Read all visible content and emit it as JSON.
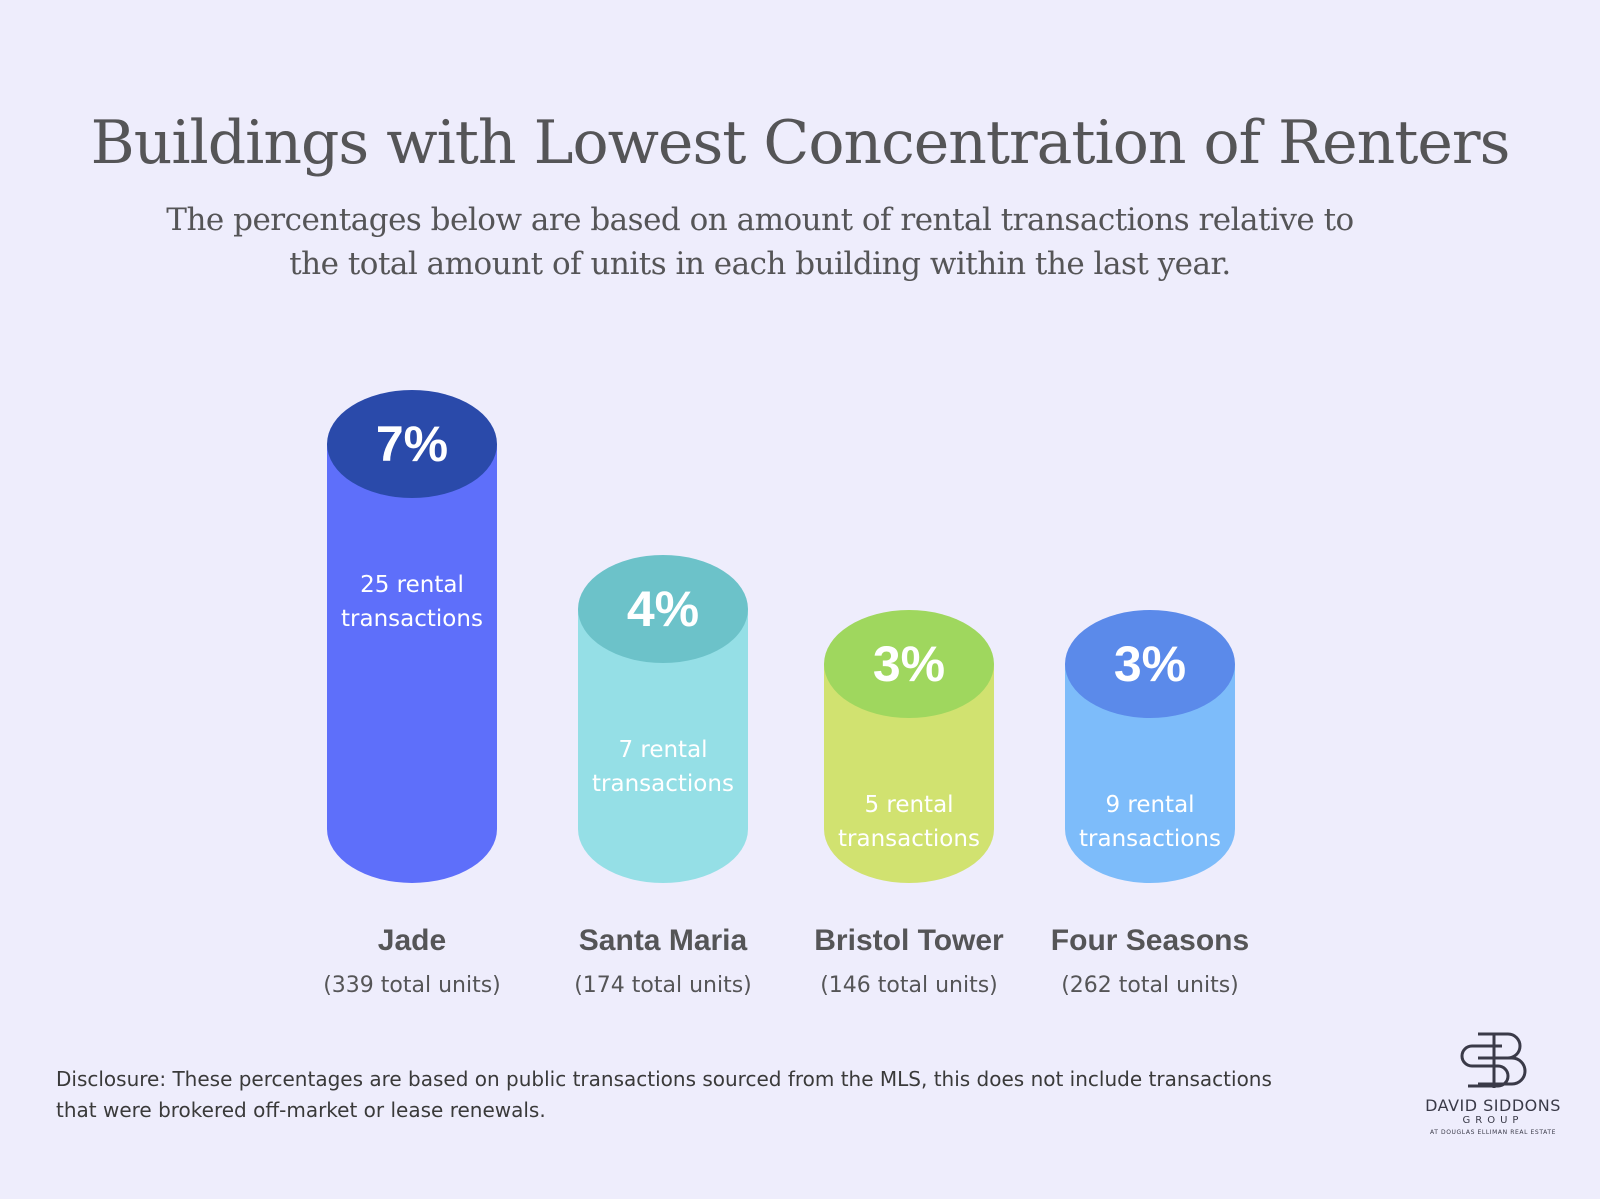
{
  "title": "Buildings with Lowest Concentration of Renters",
  "subtitle_line1": "The percentages below are based on amount of rental transactions relative to",
  "subtitle_line2": "the total amount of units in each building within the last year.",
  "disclosure_line1": "Disclosure: These percentages are based on public transactions sourced from the MLS, this does not include transactions",
  "disclosure_line2": "that were brokered off-market or lease renewals.",
  "logo": {
    "name": "DAVID SIDDONS",
    "group": "GROUP",
    "tagline": "AT DOUGLAS ELLIMAN REAL ESTATE"
  },
  "chart_data": {
    "type": "bar",
    "style": "cylinder",
    "title": "Buildings with Lowest Concentration of Renters",
    "categories": [
      "Jade",
      "Santa Maria",
      "Bristol Tower",
      "Four Seasons"
    ],
    "values": [
      7,
      4,
      3,
      3
    ],
    "value_labels": [
      "7%",
      "4%",
      "3%",
      "3%"
    ],
    "transaction_labels": [
      [
        "25 rental",
        "transactions"
      ],
      [
        "7 rental",
        "transactions"
      ],
      [
        "5 rental",
        "transactions"
      ],
      [
        "9 rental",
        "transactions"
      ]
    ],
    "unit_labels": [
      "(339 total units)",
      "(174 total units)",
      "(146 total units)",
      "(262 total units)"
    ],
    "body_colors": [
      "#5e6ffa",
      "#95dfe6",
      "#d1e270",
      "#7dbcfa"
    ],
    "top_colors": [
      "#2a4aaa",
      "#6cc2c9",
      "#9fd75e",
      "#5b8aea"
    ],
    "grid": false,
    "legend": "none"
  }
}
